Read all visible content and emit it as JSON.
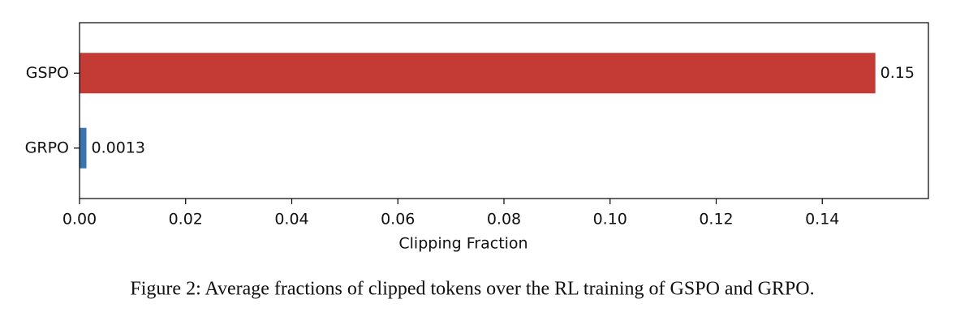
{
  "chart_data": {
    "type": "barh",
    "categories": [
      "GRPO",
      "GSPO"
    ],
    "values": [
      0.0013,
      0.15
    ],
    "colors": [
      "#3a75af",
      "#c43b35"
    ],
    "xlabel": "Clipping Fraction",
    "xlim": [
      0,
      0.16
    ],
    "xticks": [
      {
        "value": 0,
        "label": "0.00"
      },
      {
        "value": 0.02,
        "label": "0.02"
      },
      {
        "value": 0.04,
        "label": "0.04"
      },
      {
        "value": 0.06,
        "label": "0.06"
      },
      {
        "value": 0.08,
        "label": "0.08"
      },
      {
        "value": 0.1,
        "label": "0.10"
      },
      {
        "value": 0.12,
        "label": "0.12"
      },
      {
        "value": 0.14,
        "label": "0.14"
      }
    ],
    "caption": "Figure 2: Average fractions of clipped tokens over the RL training of GSPO and GRPO."
  }
}
